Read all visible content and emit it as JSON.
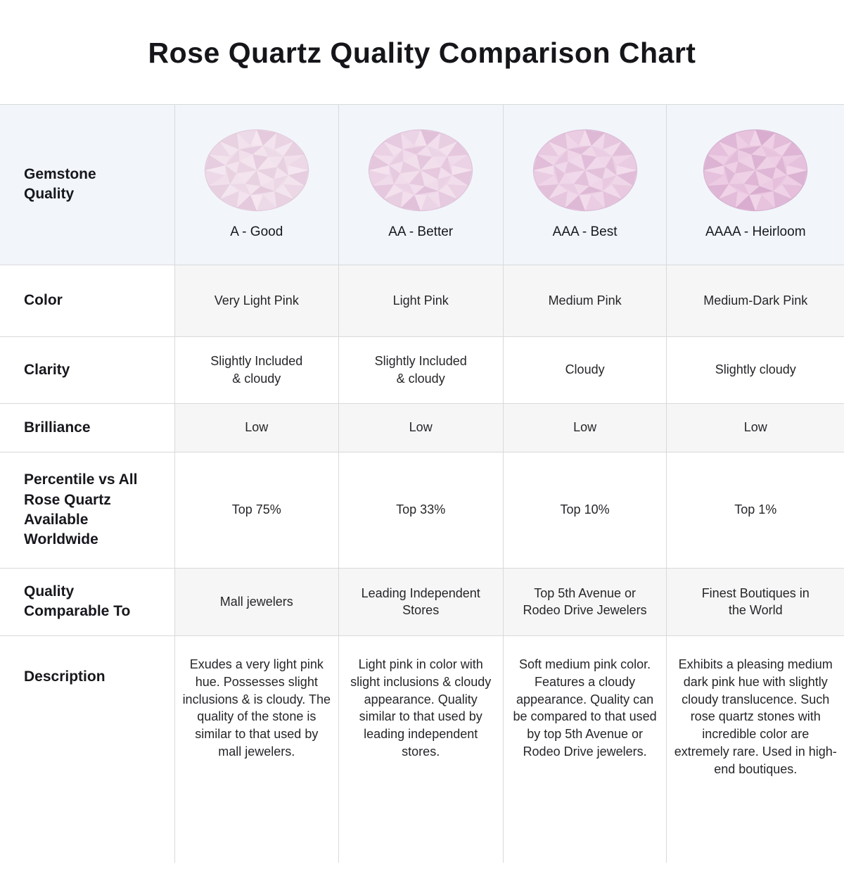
{
  "page": {
    "title": "Rose Quartz Quality Comparison Chart"
  },
  "theme": {
    "header_row_bg": "#f2f6fb",
    "alt_cell_bg": "#f6f6f6",
    "border_color": "#d9d9d9",
    "title_color": "#15161a",
    "label_color": "#17181d",
    "cell_color": "#26262b"
  },
  "table": {
    "row_headers": {
      "gemstone_quality": "Gemstone\nQuality",
      "color": "Color",
      "clarity": "Clarity",
      "brilliance": "Brilliance",
      "percentile": "Percentile vs All\nRose Quartz\nAvailable\nWorldwide",
      "comparable": "Quality\nComparable To",
      "description": "Description"
    },
    "grades": [
      {
        "label": "A - Good",
        "gem": {
          "name": "rose-quartz-gem-a",
          "base": "#efddea",
          "dark": "#d2aac6",
          "light": "#f8edf4"
        },
        "color": "Very Light Pink",
        "clarity": "Slightly Included\n& cloudy",
        "brilliance": "Low",
        "percentile": "Top 75%",
        "comparable": "Mall jewelers",
        "description": "Exudes a very light pink hue. Possesses slight inclusions & is cloudy. The quality of the stone is similar to that used by mall jewelers."
      },
      {
        "label": "AA - Better",
        "gem": {
          "name": "rose-quartz-gem-aa",
          "base": "#eed7e8",
          "dark": "#cd9fc2",
          "light": "#f7e9f2"
        },
        "color": "Light Pink",
        "clarity": "Slightly Included\n& cloudy",
        "brilliance": "Low",
        "percentile": "Top 33%",
        "comparable": "Leading Independent\nStores",
        "description": "Light pink in color with slight inclusions & cloudy appearance. Quality similar to that used by leading independent stores."
      },
      {
        "label": "AAA - Best",
        "gem": {
          "name": "rose-quartz-gem-aaa",
          "base": "#ecd0e5",
          "dark": "#c793bc",
          "light": "#f6e4ef"
        },
        "color": "Medium Pink",
        "clarity": "Cloudy",
        "brilliance": "Low",
        "percentile": "Top 10%",
        "comparable": "Top 5th Avenue or\nRodeo Drive Jewelers",
        "description": "Soft medium pink color. Features a cloudy appearance. Quality can be compared to that used by top 5th Avenue or Rodeo Drive jewelers."
      },
      {
        "label": "AAAA - Heirloom",
        "gem": {
          "name": "rose-quartz-gem-aaaa",
          "base": "#eac7e1",
          "dark": "#bd83b4",
          "light": "#f4ddec"
        },
        "color": "Medium-Dark Pink",
        "clarity": "Slightly cloudy",
        "brilliance": "Low",
        "percentile": "Top 1%",
        "comparable": "Finest Boutiques in\nthe World",
        "description": "Exhibits a pleasing medium dark pink hue with slightly cloudy translucence. Such rose quartz stones with incredible color are extremely rare. Used in high-end boutiques."
      }
    ]
  }
}
